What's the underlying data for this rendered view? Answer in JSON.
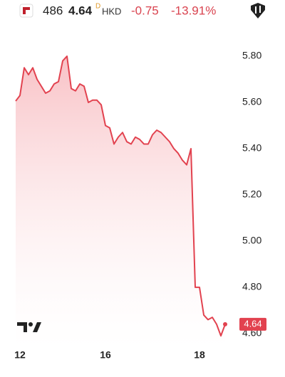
{
  "header": {
    "symbol": "486",
    "price": "4.64",
    "flag": "D",
    "currency": "HKD",
    "change": "-0.75",
    "change_percent": "-13.91%"
  },
  "chart_data": {
    "type": "area",
    "categories": [
      null,
      "12",
      null,
      null,
      null,
      null,
      null,
      null,
      null,
      null,
      null,
      null,
      null,
      null,
      null,
      null,
      null,
      null,
      null,
      null,
      null,
      "16",
      null,
      null,
      null,
      null,
      null,
      null,
      null,
      null,
      null,
      null,
      null,
      null,
      null,
      null,
      null,
      null,
      null,
      null,
      null,
      null,
      null,
      "18",
      null,
      null,
      null,
      null,
      null,
      null
    ],
    "values": [
      5.606,
      5.63,
      5.75,
      5.72,
      5.75,
      5.7,
      5.67,
      5.64,
      5.65,
      5.68,
      5.69,
      5.78,
      5.8,
      5.66,
      5.65,
      5.68,
      5.67,
      5.6,
      5.61,
      5.61,
      5.59,
      5.5,
      5.49,
      5.42,
      5.45,
      5.47,
      5.43,
      5.42,
      5.45,
      5.44,
      5.42,
      5.42,
      5.46,
      5.48,
      5.47,
      5.45,
      5.43,
      5.4,
      5.38,
      5.35,
      5.33,
      5.4,
      4.8,
      4.8,
      4.68,
      4.66,
      4.67,
      4.64,
      4.59,
      4.64
    ],
    "color": "#e2424f",
    "ylim": [
      4.535,
      5.874
    ],
    "yticks": [
      {
        "value": 4.6,
        "label": "4.60"
      },
      {
        "value": 4.8,
        "label": "4.80"
      },
      {
        "value": 5.0,
        "label": "5.00"
      },
      {
        "value": 5.2,
        "label": "5.20"
      },
      {
        "value": 5.4,
        "label": "5.40"
      },
      {
        "value": 5.6,
        "label": "5.60"
      },
      {
        "value": 5.8,
        "label": "5.80"
      }
    ]
  }
}
